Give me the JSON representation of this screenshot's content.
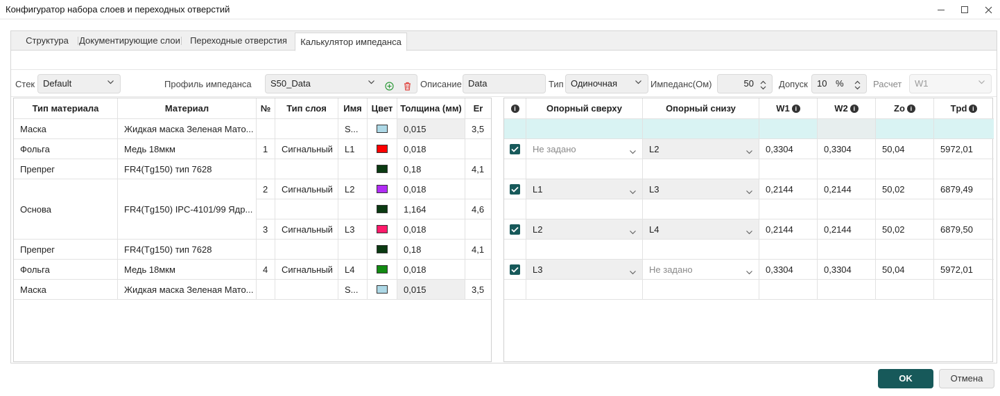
{
  "window": {
    "title": "Конфигуратор набора слоев и переходных отверстий"
  },
  "tabs": [
    "Структура",
    "Документирующие слои",
    "Переходные отверстия",
    "Калькулятор импеданса"
  ],
  "toolbar": {
    "stack_label": "Стек",
    "stack_value": "Default",
    "profile_label": "Профиль импеданса",
    "profile_value": "S50_Data",
    "description_label": "Описание",
    "description_value": "Data",
    "type_label": "Тип",
    "type_value": "Одиночная",
    "impedance_label": "Импеданс(Ом)",
    "impedance_value": "50",
    "tolerance_label": "Допуск",
    "tolerance_value": "10",
    "tolerance_unit": "%",
    "calc_label": "Расчет",
    "calc_value": "W1"
  },
  "left_table": {
    "headers": [
      "Тип материала",
      "Материал",
      "№",
      "Тип слоя",
      "Имя",
      "Цвет",
      "Толщина (мм)",
      "Er"
    ],
    "rows": [
      {
        "type": "Маска",
        "material": "Жидкая маска Зеленая Мато...",
        "num": "",
        "layer": "",
        "name": "S...",
        "color": "#add8e6",
        "thickness": "0,015",
        "er": "3,5"
      },
      {
        "type": "Фольга",
        "material": "Медь 18мкм",
        "num": "1",
        "layer": "Сигнальный",
        "name": "L1",
        "color": "#ff0000",
        "thickness": "0,018",
        "er": ""
      },
      {
        "type": "Препрег",
        "material": "FR4(Tg150) тип 7628",
        "num": "",
        "layer": "",
        "name": "",
        "color": "#0b3a12",
        "thickness": "0,18",
        "er": "4,1"
      },
      {
        "type": "",
        "material": "",
        "num": "2",
        "layer": "Сигнальный",
        "name": "L2",
        "color": "#b12cf5",
        "thickness": "0,018",
        "er": ""
      },
      {
        "type": "Основа",
        "material": "FR4(Tg150) IPC-4101/99 Ядр...",
        "num": "",
        "layer": "",
        "name": "",
        "color": "#0b3a12",
        "thickness": "1,164",
        "er": "4,6"
      },
      {
        "type": "",
        "material": "",
        "num": "3",
        "layer": "Сигнальный",
        "name": "L3",
        "color": "#ff1a6a",
        "thickness": "0,018",
        "er": ""
      },
      {
        "type": "Препрег",
        "material": "FR4(Tg150) тип 7628",
        "num": "",
        "layer": "",
        "name": "",
        "color": "#0b3a12",
        "thickness": "0,18",
        "er": "4,1"
      },
      {
        "type": "Фольга",
        "material": "Медь 18мкм",
        "num": "4",
        "layer": "Сигнальный",
        "name": "L4",
        "color": "#128a12",
        "thickness": "0,018",
        "er": ""
      },
      {
        "type": "Маска",
        "material": "Жидкая маска Зеленая Мато...",
        "num": "",
        "layer": "",
        "name": "S...",
        "color": "#add8e6",
        "thickness": "0,015",
        "er": "3,5"
      }
    ]
  },
  "right_table": {
    "headers": [
      "",
      "Опорный сверху",
      "Опорный снизу",
      "W1",
      "W2",
      "Zo",
      "Tpd"
    ],
    "rows": [
      {
        "checked": true,
        "top": "Не задано",
        "top_set": false,
        "bottom": "L2",
        "bottom_set": true,
        "w1": "0,3304",
        "w2": "0,3304",
        "zo": "50,04",
        "tpd": "5972,01"
      },
      {
        "checked": true,
        "top": "L1",
        "top_set": true,
        "bottom": "L3",
        "bottom_set": true,
        "w1": "0,2144",
        "w2": "0,2144",
        "zo": "50,02",
        "tpd": "6879,49"
      },
      {
        "checked": true,
        "top": "L2",
        "top_set": true,
        "bottom": "L4",
        "bottom_set": true,
        "w1": "0,2144",
        "w2": "0,2144",
        "zo": "50,02",
        "tpd": "6879,50"
      },
      {
        "checked": true,
        "top": "L3",
        "top_set": true,
        "bottom": "Не задано",
        "bottom_set": false,
        "w1": "0,3304",
        "w2": "0,3304",
        "zo": "50,04",
        "tpd": "5972,01"
      }
    ]
  },
  "buttons": {
    "ok": "OK",
    "cancel": "Отмена"
  },
  "colors": {
    "accent": "#17595a",
    "highlight_row": "#d9f3f3"
  }
}
